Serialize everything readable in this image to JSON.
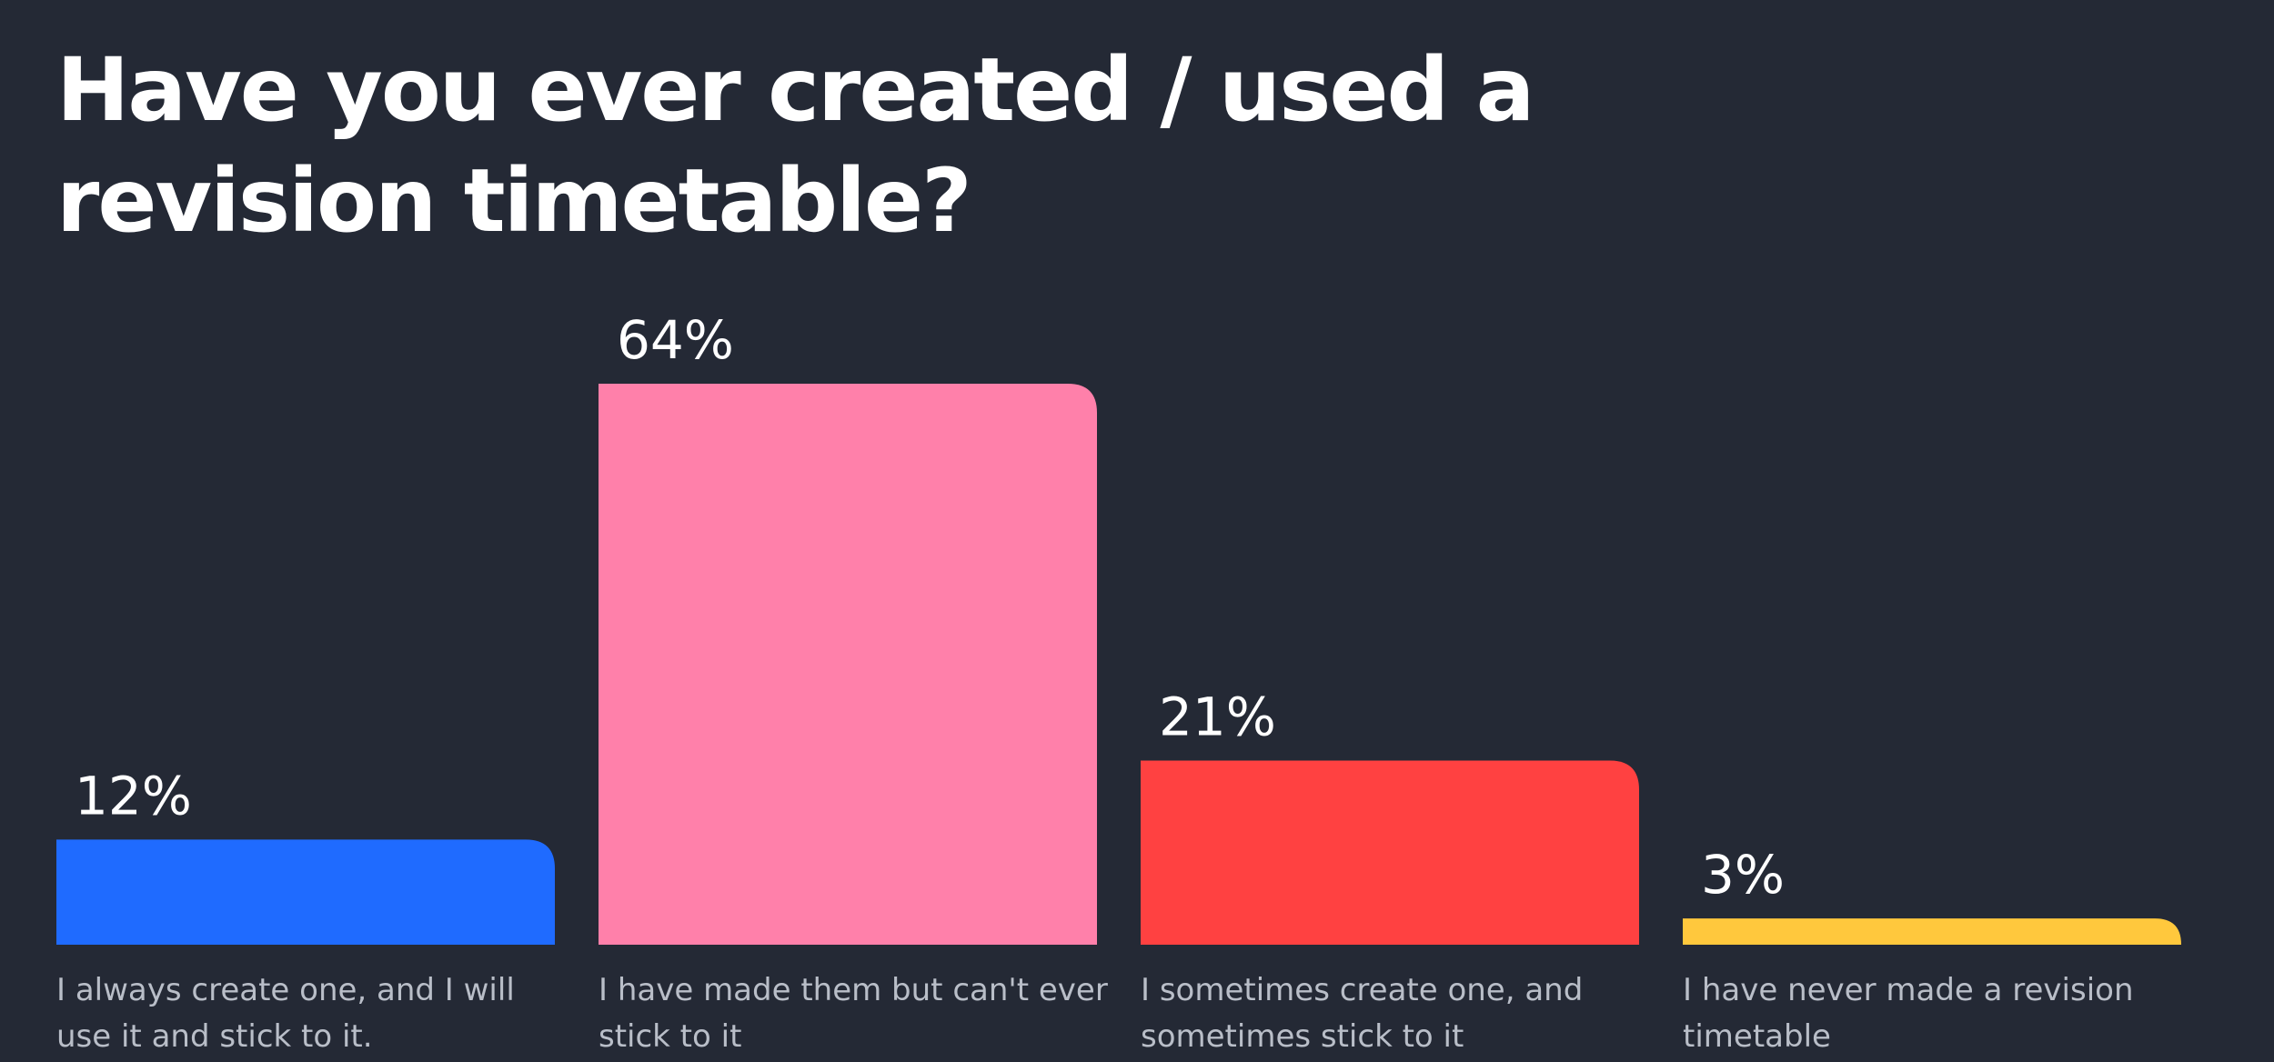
{
  "chart_data": {
    "type": "bar",
    "title": "Have you ever created / used a revision timetable?",
    "categories": [
      "I always create one, and I will use it and stick to it.",
      "I have made them but can't ever stick to it",
      "I sometimes create one, and sometimes stick to it",
      "I have never made a revision timetable"
    ],
    "values": [
      12,
      64,
      21,
      3
    ],
    "value_labels": [
      "12%",
      "64%",
      "21%",
      "3%"
    ],
    "colors": [
      "#1F6BFF",
      "#FF80AA",
      "#FF4141",
      "#FFC83D"
    ],
    "ylim": [
      0,
      64
    ],
    "grid": false,
    "legend": "none"
  }
}
